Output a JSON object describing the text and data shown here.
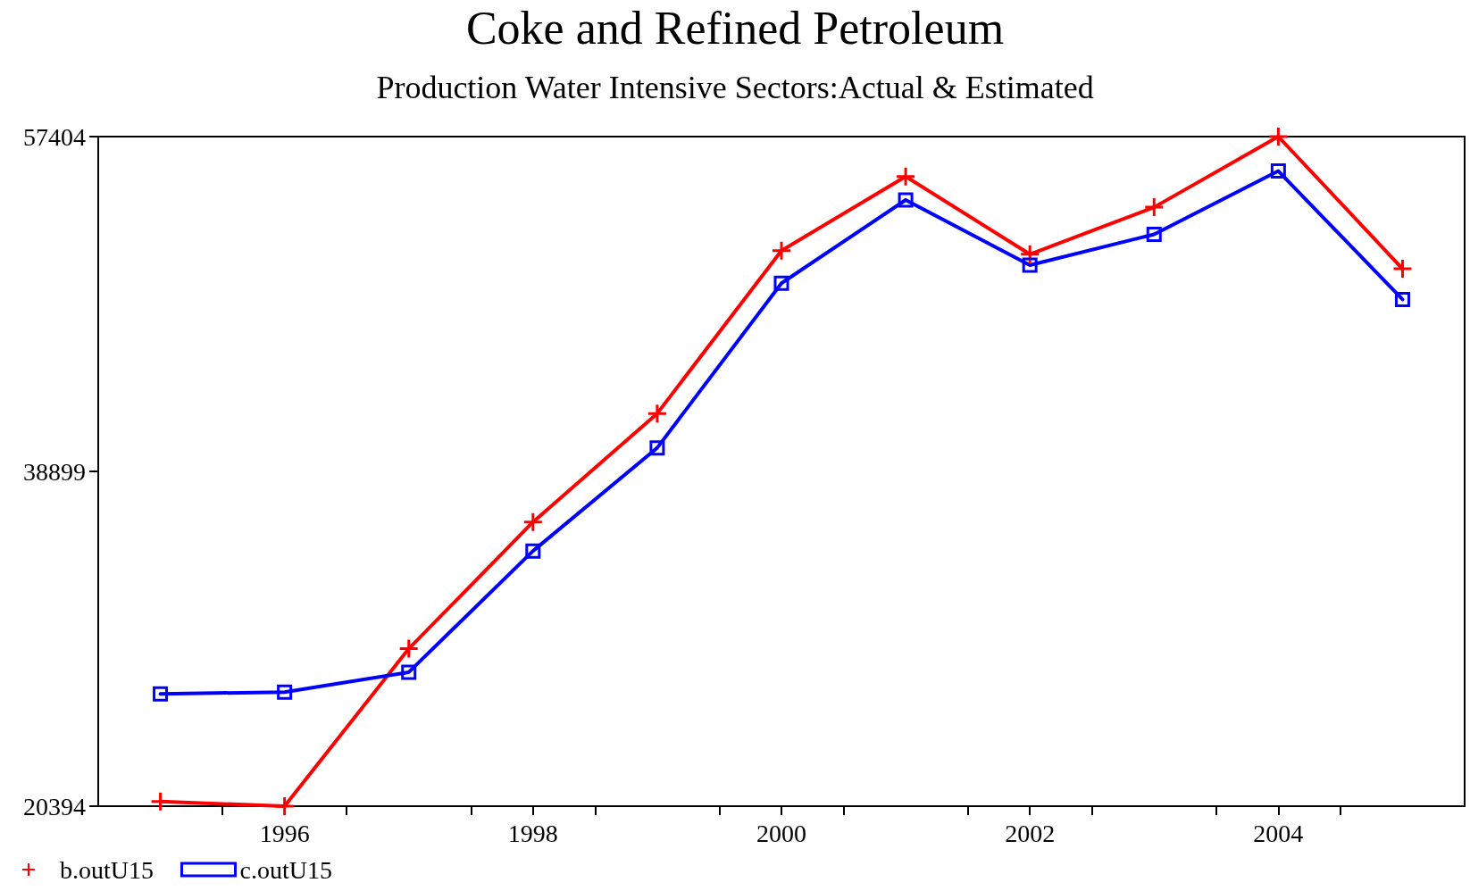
{
  "chart_data": {
    "type": "line",
    "title": "Coke and Refined Petroleum",
    "subtitle": "Production Water Intensive Sectors:Actual & Estimated",
    "x": [
      1995,
      1996,
      1997,
      1998,
      1999,
      2000,
      2001,
      2002,
      2003,
      2004,
      2005
    ],
    "series": [
      {
        "name": "b.outU15",
        "color": "#ff0000",
        "marker": "cross",
        "values": [
          20650,
          20394,
          29100,
          36100,
          42100,
          51100,
          55200,
          50900,
          53500,
          57404,
          50100
        ]
      },
      {
        "name": "c.outU15",
        "color": "#0000ff",
        "marker": "square",
        "values": [
          26600,
          26700,
          27800,
          34500,
          40200,
          49300,
          53900,
          50300,
          52000,
          55500,
          48400
        ]
      }
    ],
    "xlim": [
      1994.5,
      2005.5
    ],
    "xticks": [
      {
        "value": 1995.5,
        "label": null
      },
      1996,
      {
        "value": 1996.5,
        "label": null
      },
      {
        "value": 1997.5,
        "label": null
      },
      1998,
      {
        "value": 1998.5,
        "label": null
      },
      {
        "value": 1999.5,
        "label": null
      },
      2000,
      {
        "value": 2000.5,
        "label": null
      },
      {
        "value": 2001.5,
        "label": null
      },
      2002,
      {
        "value": 2002.5,
        "label": null
      },
      {
        "value": 2003.5,
        "label": null
      },
      2004,
      {
        "value": 2004.5,
        "label": null
      }
    ],
    "ylim": [
      20394,
      57404
    ],
    "yticks": [
      20394,
      38899,
      57404
    ],
    "grid": false,
    "legend": "bottom left",
    "line_style": "solid"
  }
}
